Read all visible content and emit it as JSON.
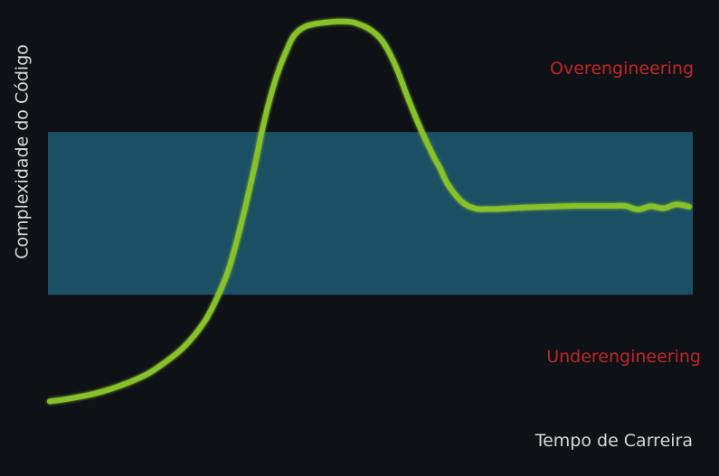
{
  "chart_data": {
    "type": "line",
    "title": "",
    "xlabel": "Tempo de Carreira",
    "ylabel": "Complexidade do Código",
    "x_range": [
      0,
      100
    ],
    "y_range": [
      0,
      100
    ],
    "grid": false,
    "legend": "none",
    "band": {
      "y_low": 29.4,
      "y_high": 71.2
    },
    "annotations": [
      {
        "text": "Overengineering",
        "region": "above band"
      },
      {
        "text": "Underengineering",
        "region": "below band"
      }
    ],
    "series": [
      {
        "x": [
          0,
          3,
          7,
          11,
          15,
          18,
          21,
          24,
          26,
          28,
          30,
          32,
          33,
          34,
          35,
          36,
          37,
          38,
          39,
          40,
          41,
          42,
          43,
          44,
          45,
          46,
          47,
          48,
          50,
          52,
          54,
          56,
          58,
          60,
          61,
          62,
          63,
          64,
          65,
          66,
          67,
          68,
          69,
          70,
          71,
          72,
          73,
          74,
          76,
          78,
          80,
          82,
          84,
          86,
          88,
          90,
          92,
          94,
          96,
          98,
          100
        ],
        "y": [
          2,
          2.7,
          4,
          6,
          8.8,
          12,
          16,
          22,
          28,
          36,
          48,
          62,
          70,
          77,
          83,
          88,
          92,
          95.5,
          97.3,
          98.3,
          98.8,
          99.1,
          99.3,
          99.5,
          99.6,
          99.6,
          99.5,
          99.1,
          97.6,
          94.6,
          88.5,
          80,
          72,
          65,
          62,
          58.5,
          56,
          54,
          52.6,
          51.8,
          51.4,
          51.4,
          51.4,
          51.4,
          51.5,
          51.6,
          51.7,
          51.8,
          51.9,
          52.0,
          52.1,
          52.2,
          52.2,
          52.2,
          52.2,
          52.2,
          51.3,
          52.1,
          51.6,
          52.6,
          52
        ]
      }
    ]
  },
  "colors": {
    "background": "#0e1116",
    "band": "#1b4f63",
    "curve": "#88c22a",
    "axis": "#f2f2f2",
    "annotation": "#c22626",
    "axis_label": "#d8d8d8"
  }
}
